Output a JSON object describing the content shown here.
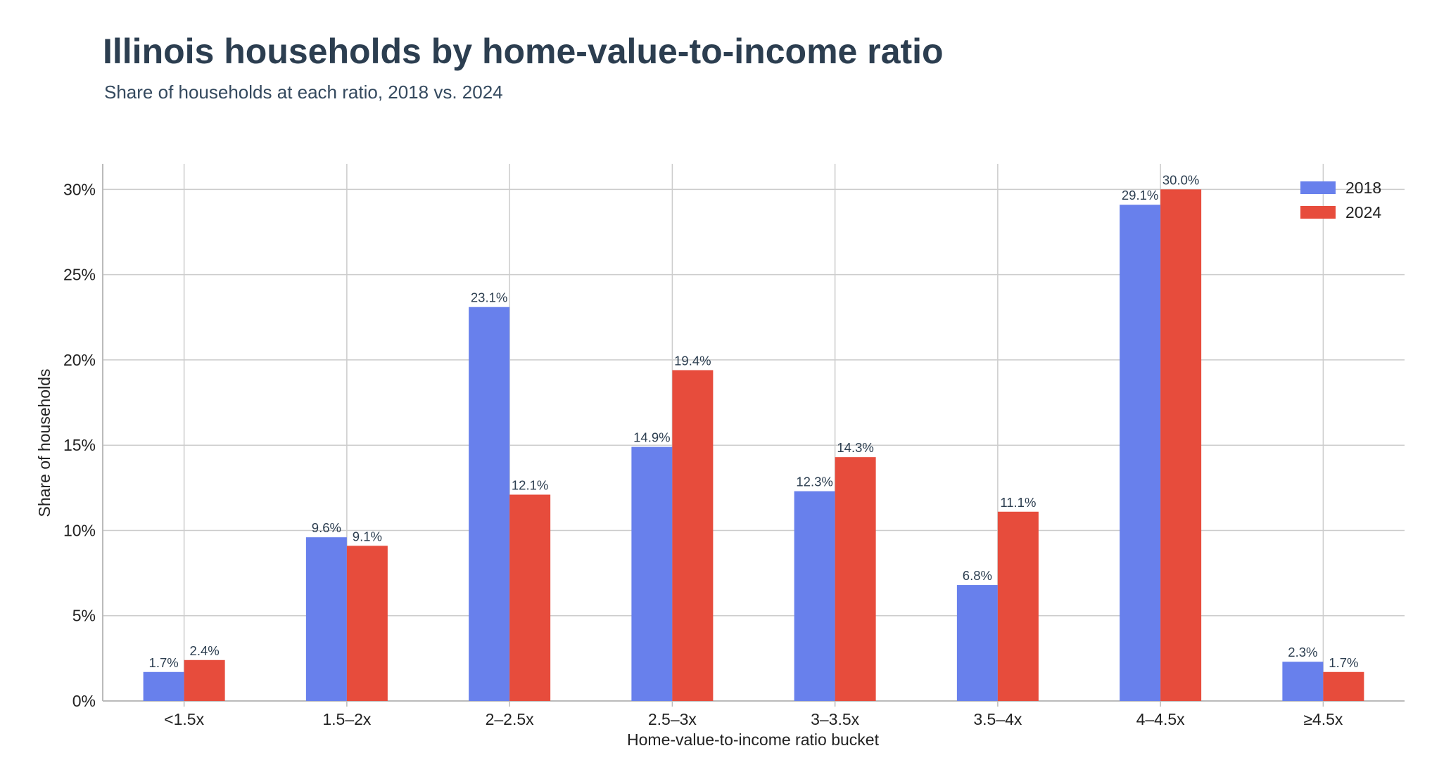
{
  "colors": {
    "series_2018": "#6880ec",
    "series_2024": "#e74c3c",
    "grid": "#cccccc",
    "axis": "#bbbbbb"
  },
  "chart_data": {
    "type": "bar",
    "title": "Illinois households by home-value-to-income ratio",
    "subtitle": "Share of households at each ratio, 2018 vs. 2024",
    "xlabel": "Home-value-to-income ratio bucket",
    "ylabel": "Share of households",
    "categories": [
      "<1.5x",
      "1.5–2x",
      "2–2.5x",
      "2.5–3x",
      "3–3.5x",
      "3.5–4x",
      "4–4.5x",
      "≥4.5x"
    ],
    "series": [
      {
        "name": "2018",
        "values": [
          1.7,
          9.6,
          23.1,
          14.9,
          12.3,
          6.8,
          29.1,
          2.3
        ],
        "labels": [
          "1.7%",
          "9.6%",
          "23.1%",
          "14.9%",
          "12.3%",
          "6.8%",
          "29.1%",
          "2.3%"
        ]
      },
      {
        "name": "2024",
        "values": [
          2.4,
          9.1,
          12.1,
          19.4,
          14.3,
          11.1,
          30.0,
          1.7
        ],
        "labels": [
          "2.4%",
          "9.1%",
          "12.1%",
          "19.4%",
          "14.3%",
          "11.1%",
          "30.0%",
          "1.7%"
        ]
      }
    ],
    "ylim": [
      0,
      31.5
    ],
    "yticks": [
      0,
      5,
      10,
      15,
      20,
      25,
      30
    ],
    "ytick_labels": [
      "0%",
      "5%",
      "10%",
      "15%",
      "20%",
      "25%",
      "30%"
    ],
    "grid": true,
    "legend_position": "top-right"
  }
}
